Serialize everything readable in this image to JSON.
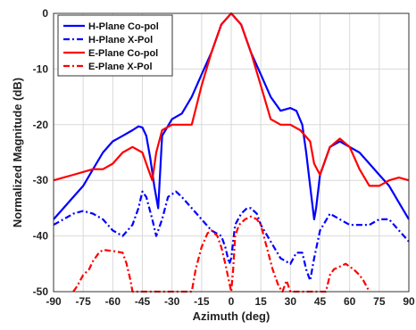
{
  "chart_data": {
    "type": "line",
    "title": "",
    "xlabel": "Azimuth (deg)",
    "ylabel": "Normalized Magnitude (dB)",
    "xlim": [
      -90,
      90
    ],
    "ylim": [
      -50,
      0
    ],
    "xticks": [
      "-90",
      "-75",
      "-60",
      "-45",
      "-30",
      "-15",
      "0",
      "15",
      "30",
      "45",
      "60",
      "75",
      "90"
    ],
    "yticks": [
      "0",
      "-10",
      "-20",
      "-30",
      "-40",
      "-50"
    ],
    "grid": true,
    "legend_position": "top-left",
    "series": [
      {
        "name": "H-Plane Co-pol",
        "color": "#0000ff",
        "dash": "solid",
        "x": [
          -90,
          -85,
          -80,
          -75,
          -70,
          -65,
          -60,
          -55,
          -50,
          -47,
          -45,
          -43,
          -41,
          -39,
          -37,
          -35,
          -30,
          -25,
          -20,
          -15,
          -10,
          -5,
          0,
          5,
          10,
          15,
          20,
          25,
          30,
          33,
          36,
          38,
          40,
          42,
          43,
          45,
          50,
          55,
          60,
          65,
          70,
          75,
          80,
          85,
          90
        ],
        "y": [
          -37,
          -35,
          -33,
          -31,
          -28,
          -25,
          -23,
          -22,
          -21,
          -20.3,
          -20.5,
          -22,
          -26,
          -31,
          -35,
          -22,
          -19,
          -18,
          -15,
          -11,
          -7,
          -2,
          0,
          -2,
          -7,
          -11,
          -15,
          -17.5,
          -17,
          -17.5,
          -20,
          -25,
          -31,
          -37,
          -35,
          -29,
          -24,
          -23,
          -24,
          -25,
          -27,
          -29,
          -31,
          -34,
          -37
        ]
      },
      {
        "name": "H-Plane X-Pol",
        "color": "#0000ff",
        "dash": "dashdot",
        "x": [
          -90,
          -85,
          -80,
          -75,
          -70,
          -65,
          -60,
          -55,
          -50,
          -47,
          -45,
          -43,
          -40,
          -38,
          -35,
          -32,
          -28,
          -25,
          -20,
          -15,
          -10,
          -5,
          -3,
          -1,
          0,
          2,
          5,
          8,
          10,
          13,
          15,
          20,
          25,
          30,
          33,
          36,
          38,
          40,
          42,
          45,
          50,
          55,
          60,
          65,
          70,
          75,
          80,
          85,
          90
        ],
        "y": [
          -38,
          -37,
          -36,
          -35.5,
          -36,
          -37,
          -39,
          -40,
          -38,
          -35,
          -32,
          -33,
          -37,
          -40,
          -37,
          -33,
          -32,
          -33,
          -35,
          -37,
          -39,
          -40,
          -42,
          -45,
          -44,
          -38,
          -36,
          -35,
          -35,
          -36,
          -38,
          -41,
          -44,
          -45,
          -43,
          -43,
          -46,
          -48,
          -44,
          -39,
          -36,
          -37,
          -38,
          -38,
          -38,
          -37,
          -37,
          -39,
          -41
        ]
      },
      {
        "name": "E-Plane Co-pol",
        "color": "#ff0000",
        "dash": "solid",
        "x": [
          -90,
          -85,
          -80,
          -75,
          -70,
          -65,
          -60,
          -55,
          -50,
          -45,
          -42,
          -40,
          -38,
          -35,
          -30,
          -25,
          -20,
          -15,
          -10,
          -5,
          0,
          5,
          10,
          15,
          20,
          25,
          30,
          35,
          40,
          42,
          45,
          50,
          55,
          60,
          65,
          70,
          75,
          80,
          85,
          90
        ],
        "y": [
          -30,
          -29.5,
          -29,
          -28.5,
          -28,
          -28,
          -27,
          -25,
          -24,
          -25,
          -28,
          -30,
          -25,
          -21,
          -20,
          -20,
          -20,
          -13,
          -7,
          -2,
          0,
          -2,
          -7,
          -13,
          -19,
          -20,
          -20,
          -21,
          -23,
          -27,
          -29,
          -24,
          -22.5,
          -24,
          -28,
          -31,
          -31,
          -30,
          -29.5,
          -30
        ]
      },
      {
        "name": "E-Plane X-Pol",
        "color": "#ff0000",
        "dash": "dashdot",
        "x": [
          -80,
          -78,
          -75,
          -72,
          -70,
          -67,
          -65,
          -60,
          -55,
          -53,
          -51,
          -50,
          -20,
          -18,
          -15,
          -12,
          -10,
          -7,
          -5,
          -3,
          0,
          1,
          2,
          4,
          7,
          10,
          13,
          15,
          18,
          21,
          24,
          26,
          28,
          30,
          48,
          50,
          52,
          55,
          58,
          60,
          62,
          65,
          67,
          70
        ],
        "y": [
          -50,
          -49,
          -47,
          -46,
          -44.5,
          -43,
          -42.5,
          -42.7,
          -43,
          -45,
          -48,
          -50,
          -50,
          -46,
          -42,
          -39.5,
          -39,
          -40,
          -42,
          -45,
          -50,
          -46,
          -40,
          -38,
          -37,
          -36.5,
          -37,
          -38,
          -42,
          -46,
          -49,
          -50,
          -48,
          -50,
          -50,
          -47,
          -46,
          -45.5,
          -45,
          -45.5,
          -46,
          -47,
          -48,
          -50
        ]
      }
    ]
  }
}
